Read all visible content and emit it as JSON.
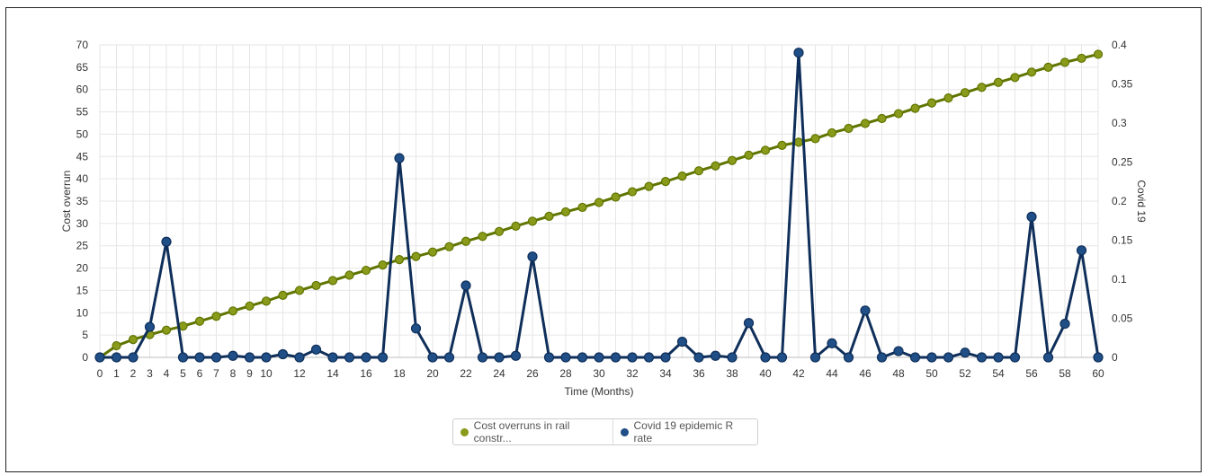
{
  "chart_data": {
    "type": "line",
    "xlabel": "Time (Months)",
    "ylabel": "Cost overrun",
    "y2label": "Covid 19",
    "xlim": [
      0,
      60
    ],
    "ylim": [
      0,
      70
    ],
    "y2lim": [
      0,
      0.4
    ],
    "x_ticks": [
      "0",
      "1",
      "2",
      "3",
      "4",
      "5",
      "6",
      "7",
      "8",
      "9",
      "10",
      "12",
      "14",
      "16",
      "18",
      "20",
      "22",
      "24",
      "26",
      "28",
      "30",
      "32",
      "34",
      "36",
      "38",
      "40",
      "42",
      "44",
      "46",
      "48",
      "50",
      "52",
      "54",
      "56",
      "58",
      "60"
    ],
    "y_ticks": [
      "0",
      "5",
      "10",
      "15",
      "20",
      "25",
      "30",
      "35",
      "40",
      "45",
      "50",
      "55",
      "60",
      "65",
      "70"
    ],
    "y2_ticks": [
      "0",
      "0.05",
      "0.1",
      "0.15",
      "0.2",
      "0.25",
      "0.3",
      "0.35",
      "0.4"
    ],
    "grid": true,
    "legend_position": "bottom-center",
    "series": [
      {
        "name": "Cost overruns in rail constr...",
        "axis": "left",
        "color": "#5f7500",
        "marker_color": "#8a9a1a",
        "x": [
          0,
          1,
          2,
          3,
          4,
          5,
          6,
          7,
          8,
          9,
          10,
          11,
          12,
          13,
          14,
          15,
          16,
          17,
          18,
          19,
          20,
          21,
          22,
          23,
          24,
          25,
          26,
          27,
          28,
          29,
          30,
          31,
          32,
          33,
          34,
          35,
          36,
          37,
          38,
          39,
          40,
          41,
          42,
          43,
          44,
          45,
          46,
          47,
          48,
          49,
          50,
          51,
          52,
          53,
          54,
          55,
          56,
          57,
          58,
          59,
          60
        ],
        "values": [
          0,
          2.6,
          4.0,
          5.1,
          6.1,
          7.0,
          8.1,
          9.2,
          10.4,
          11.5,
          12.6,
          13.9,
          15.0,
          16.1,
          17.2,
          18.4,
          19.5,
          20.7,
          21.9,
          22.6,
          23.6,
          24.8,
          26.0,
          27.1,
          28.2,
          29.4,
          30.5,
          31.6,
          32.6,
          33.6,
          34.7,
          35.9,
          37.1,
          38.3,
          39.4,
          40.6,
          41.8,
          42.9,
          44.1,
          45.3,
          46.4,
          47.5,
          48.2,
          49.0,
          50.3,
          51.3,
          52.4,
          53.5,
          54.6,
          55.8,
          57.0,
          58.1,
          59.3,
          60.5,
          61.6,
          62.7,
          63.9,
          65.0,
          66.1,
          67.0,
          67.9
        ]
      },
      {
        "name": "Covid 19 epidemic R rate",
        "axis": "right",
        "color": "#0f2f5a",
        "marker_color": "#1f4f86",
        "x": [
          0,
          1,
          2,
          3,
          4,
          5,
          6,
          7,
          8,
          9,
          10,
          11,
          12,
          13,
          14,
          15,
          16,
          17,
          18,
          19,
          20,
          21,
          22,
          23,
          24,
          25,
          26,
          27,
          28,
          29,
          30,
          31,
          32,
          33,
          34,
          35,
          36,
          37,
          38,
          39,
          40,
          41,
          42,
          43,
          44,
          45,
          46,
          47,
          48,
          49,
          50,
          51,
          52,
          53,
          54,
          55,
          56,
          57,
          58,
          59,
          60
        ],
        "values": [
          0,
          0,
          0,
          0.039,
          0.148,
          0,
          0,
          0,
          0.002,
          0,
          0,
          0.004,
          0,
          0.01,
          0,
          0,
          0,
          0,
          0.255,
          0.037,
          0,
          0,
          0.092,
          0,
          0,
          0.002,
          0.129,
          0,
          0,
          0,
          0,
          0,
          0,
          0,
          0,
          0.02,
          0,
          0.002,
          0,
          0.044,
          0,
          0,
          0.39,
          0,
          0.018,
          0,
          0.06,
          0,
          0.008,
          0,
          0,
          0,
          0.006,
          0,
          0,
          0,
          0.18,
          0,
          0.043,
          0.137,
          0
        ]
      }
    ]
  }
}
